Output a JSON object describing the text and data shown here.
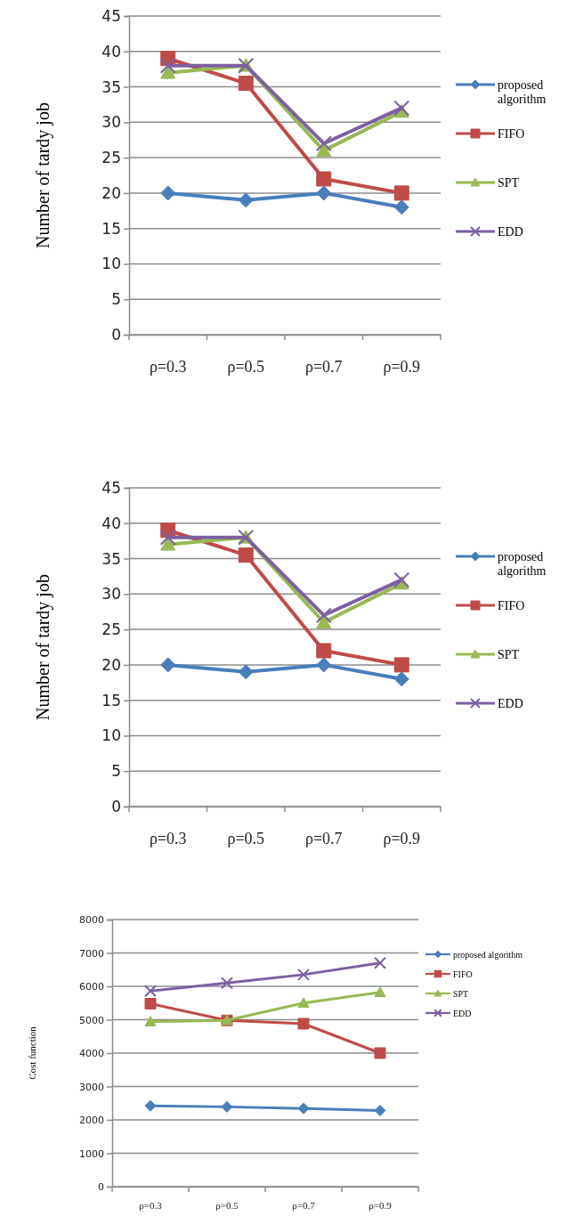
{
  "chart_data": [
    {
      "type": "line",
      "ylabel": "Number of tardy job",
      "categories": [
        "ρ=0.3",
        "ρ=0.5",
        "ρ=0.7",
        "ρ=0.9"
      ],
      "ylim": [
        0,
        45
      ],
      "yticks": [
        0,
        5,
        10,
        15,
        20,
        25,
        30,
        35,
        40,
        45
      ],
      "grid": "y",
      "legend": "right",
      "series": [
        {
          "name": "proposed algorithm",
          "color": "#4a7ebb",
          "marker": "diamond",
          "values": [
            20,
            19,
            20,
            18
          ]
        },
        {
          "name": "FIFO",
          "color": "#be4b48",
          "marker": "square",
          "values": [
            39,
            35.5,
            22,
            20
          ]
        },
        {
          "name": "SPT",
          "color": "#98b954",
          "marker": "triangle",
          "values": [
            37,
            38,
            26,
            31.5
          ]
        },
        {
          "name": "EDD",
          "color": "#7d60a0",
          "marker": "cross",
          "values": [
            38,
            38,
            27,
            32
          ]
        }
      ]
    },
    {
      "type": "line",
      "ylabel": "Number of tardy job",
      "categories": [
        "ρ=0.3",
        "ρ=0.5",
        "ρ=0.7",
        "ρ=0.9"
      ],
      "ylim": [
        0,
        45
      ],
      "yticks": [
        0,
        5,
        10,
        15,
        20,
        25,
        30,
        35,
        40,
        45
      ],
      "grid": "y",
      "legend": "right",
      "series": [
        {
          "name": "proposed algorithm",
          "color": "#4a7ebb",
          "marker": "diamond",
          "values": [
            20,
            19,
            20,
            18
          ]
        },
        {
          "name": "FIFO",
          "color": "#be4b48",
          "marker": "square",
          "values": [
            39,
            35.5,
            22,
            20
          ]
        },
        {
          "name": "SPT",
          "color": "#98b954",
          "marker": "triangle",
          "values": [
            37,
            38,
            26,
            31.5
          ]
        },
        {
          "name": "EDD",
          "color": "#7d60a0",
          "marker": "cross",
          "values": [
            38,
            38,
            27,
            32
          ]
        }
      ]
    },
    {
      "type": "line",
      "ylabel": "Cost function",
      "categories": [
        "ρ=0.3",
        "ρ=0.5",
        "ρ=0.7",
        "ρ=0.9"
      ],
      "ylim": [
        0,
        8000
      ],
      "yticks": [
        0,
        1000,
        2000,
        3000,
        4000,
        5000,
        6000,
        7000,
        8000
      ],
      "grid": "y",
      "legend": "right",
      "series": [
        {
          "name": "proposed algorithm",
          "color": "#4a7ebb",
          "marker": "diamond",
          "values": [
            2420,
            2390,
            2340,
            2280
          ]
        },
        {
          "name": "FIFO",
          "color": "#be4b48",
          "marker": "square",
          "values": [
            5480,
            4980,
            4880,
            4000
          ]
        },
        {
          "name": "SPT",
          "color": "#98b954",
          "marker": "triangle",
          "values": [
            4940,
            4980,
            5500,
            5820
          ]
        },
        {
          "name": "EDD",
          "color": "#7d60a0",
          "marker": "cross",
          "values": [
            5860,
            6100,
            6350,
            6700
          ]
        }
      ]
    }
  ]
}
